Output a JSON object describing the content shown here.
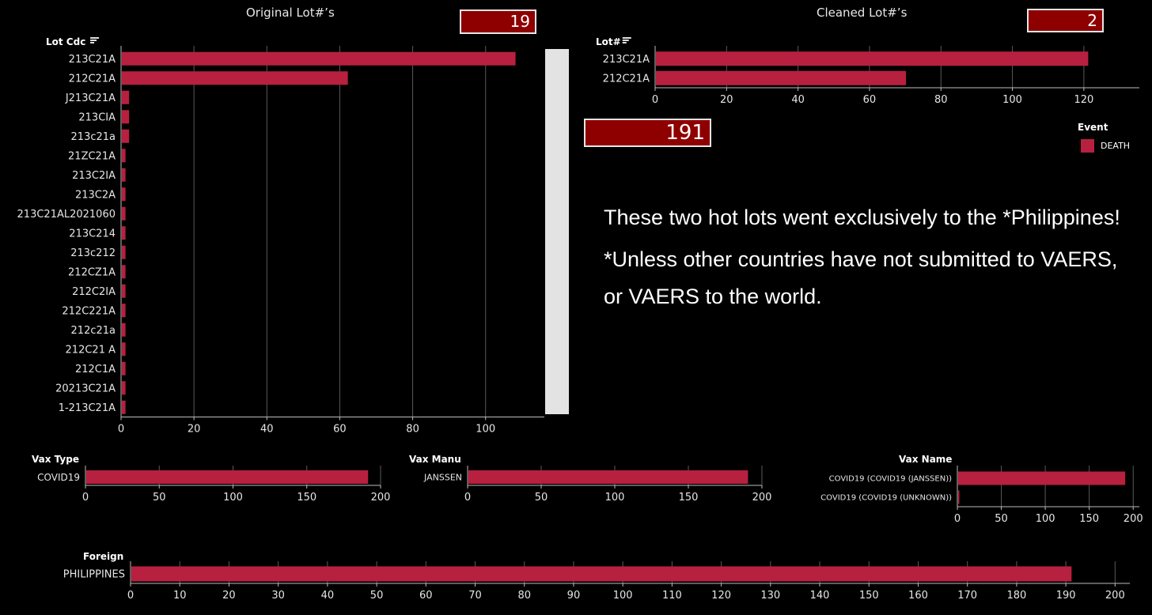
{
  "colors": {
    "bar": "#b8203f",
    "kpi_bg": "#8e0000",
    "grid": "#5a5a5a",
    "axis": "#bdbdbd"
  },
  "header": {
    "original_title": "Original Lot#’s",
    "original_count": "19",
    "cleaned_title": "Cleaned Lot#’s",
    "cleaned_count": "2",
    "total_count": "191"
  },
  "legend": {
    "title": "Event",
    "items": [
      {
        "label": "DEATH",
        "color": "#b8203f"
      }
    ]
  },
  "note": {
    "line1": "These two hot lots went exclusively to the *Philippines!",
    "line2": "*Unless other countries have not submitted to VAERS, or VAERS to the world."
  },
  "chart_data": [
    {
      "id": "original-lots",
      "type": "bar",
      "orientation": "horizontal",
      "dim_label": "Lot Cdc",
      "sort_icon": "sort-icon",
      "categories": [
        "213C21A",
        "212C21A",
        "J213C21A",
        "213CIA",
        "213c21a",
        "21ZC21A",
        "213C2IA",
        "213C2A",
        "213C21AL2021060",
        "213C214",
        "213c212",
        "212CZ1A",
        "212C2IA",
        "212C221A",
        "212c21a",
        "212C21 A",
        "212C1A",
        "20213C21A",
        "1-213C21A"
      ],
      "values": [
        108,
        62,
        2,
        2,
        2,
        1,
        1,
        1,
        1,
        1,
        1,
        1,
        1,
        1,
        1,
        1,
        1,
        1,
        1
      ],
      "ticks": [
        0,
        20,
        40,
        60,
        80,
        100
      ],
      "xlim": [
        0,
        112
      ],
      "grid": true
    },
    {
      "id": "cleaned-lots",
      "type": "bar",
      "orientation": "horizontal",
      "dim_label": "Lot#",
      "sort_icon": "sort-icon",
      "categories": [
        "213C21A",
        "212C21A"
      ],
      "values": [
        121,
        70
      ],
      "ticks": [
        0,
        20,
        40,
        60,
        80,
        100,
        120
      ],
      "xlim": [
        0,
        128
      ],
      "grid": true
    },
    {
      "id": "vax-type",
      "type": "bar",
      "orientation": "horizontal",
      "dim_label": "Vax Type",
      "categories": [
        "COVID19"
      ],
      "values": [
        191
      ],
      "ticks": [
        0,
        50,
        100,
        150,
        200
      ],
      "xlim": [
        0,
        200
      ],
      "grid": true
    },
    {
      "id": "vax-manu",
      "type": "bar",
      "orientation": "horizontal",
      "dim_label": "Vax Manu",
      "categories": [
        "JANSSEN"
      ],
      "values": [
        190
      ],
      "ticks": [
        0,
        50,
        100,
        150,
        200
      ],
      "xlim": [
        0,
        200
      ],
      "grid": true
    },
    {
      "id": "vax-name",
      "type": "bar",
      "orientation": "horizontal",
      "dim_label": "Vax Name",
      "categories": [
        "COVID19 (COVID19 (JANSSEN))",
        "COVID19 (COVID19 (UNKNOWN))"
      ],
      "values": [
        190,
        1
      ],
      "ticks": [
        0,
        50,
        100,
        150,
        200
      ],
      "xlim": [
        0,
        207
      ],
      "grid": true
    },
    {
      "id": "foreign",
      "type": "bar",
      "orientation": "horizontal",
      "dim_label": "Foreign",
      "categories": [
        "PHILIPPINES"
      ],
      "values": [
        191
      ],
      "ticks": [
        0,
        10,
        20,
        30,
        40,
        50,
        60,
        70,
        80,
        90,
        100,
        110,
        120,
        130,
        140,
        150,
        160,
        170,
        180,
        190,
        200
      ],
      "xlim": [
        0,
        203
      ],
      "grid": true
    }
  ]
}
